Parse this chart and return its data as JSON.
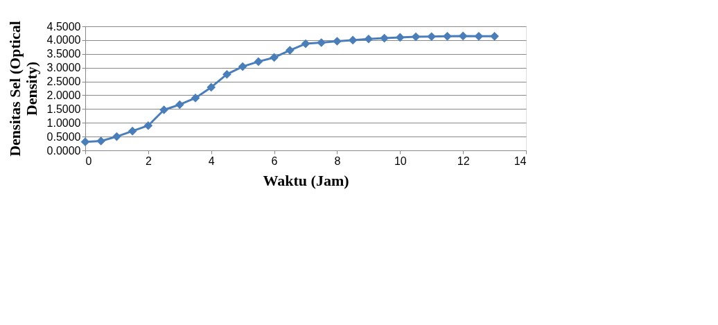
{
  "chart_data": {
    "type": "line",
    "xlabel": "Waktu (Jam)",
    "ylabel": "Densitas Sel (Optical Density)",
    "x": [
      0,
      0.5,
      1,
      1.5,
      2,
      2.5,
      3,
      3.5,
      4,
      4.5,
      5,
      5.5,
      6,
      6.5,
      7,
      7.5,
      8,
      8.5,
      9,
      9.5,
      10,
      10.5,
      11,
      11.5,
      12,
      12.5,
      13
    ],
    "series": [
      {
        "color": "#4a7ebb",
        "values": [
          0.31,
          0.34,
          0.5,
          0.7,
          0.9,
          1.47,
          1.66,
          1.9,
          2.29,
          2.76,
          3.04,
          3.22,
          3.37,
          3.63,
          3.87,
          3.91,
          3.96,
          4.0,
          4.04,
          4.07,
          4.1,
          4.12,
          4.13,
          4.14,
          4.15,
          4.14,
          4.14
        ]
      }
    ],
    "xlim": [
      0,
      14
    ],
    "xticks": [
      0,
      2,
      4,
      6,
      8,
      10,
      12,
      14
    ],
    "ylim": [
      0,
      4.5
    ],
    "yticks": [
      {
        "value": 0,
        "label": "0.0000"
      },
      {
        "value": 0.5,
        "label": "0.5000"
      },
      {
        "value": 1,
        "label": "1.0000"
      },
      {
        "value": 1.5,
        "label": "1.5000"
      },
      {
        "value": 2,
        "label": "2.0000"
      },
      {
        "value": 2.5,
        "label": "2.5000"
      },
      {
        "value": 3,
        "label": "3.0000"
      },
      {
        "value": 3.5,
        "label": "3.5000"
      },
      {
        "value": 4,
        "label": "4.0000"
      },
      {
        "value": 4.5,
        "label": "4.5000"
      }
    ],
    "grid": "y",
    "marker": "diamond",
    "line_style": "solid"
  }
}
